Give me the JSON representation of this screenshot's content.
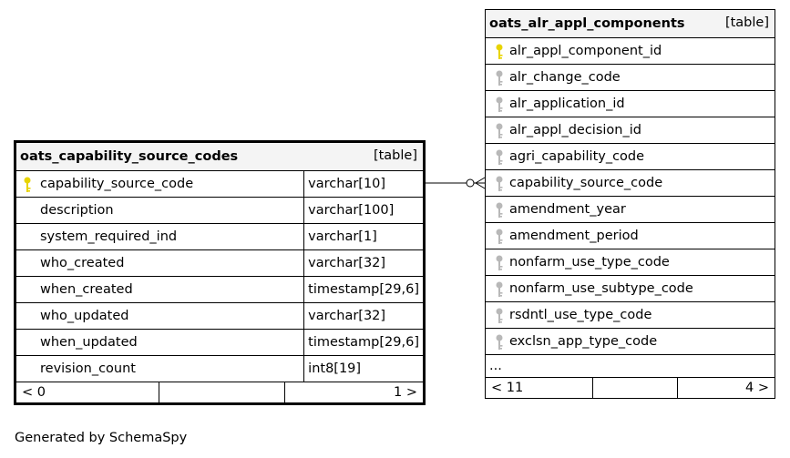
{
  "left_table": {
    "name": "oats_capability_source_codes",
    "kind": "[table]",
    "columns": [
      {
        "name": "capability_source_code",
        "type": "varchar[10]",
        "key": "primary"
      },
      {
        "name": "description",
        "type": "varchar[100]",
        "key": "none"
      },
      {
        "name": "system_required_ind",
        "type": "varchar[1]",
        "key": "none"
      },
      {
        "name": "who_created",
        "type": "varchar[32]",
        "key": "none"
      },
      {
        "name": "when_created",
        "type": "timestamp[29,6]",
        "key": "none"
      },
      {
        "name": "who_updated",
        "type": "varchar[32]",
        "key": "none"
      },
      {
        "name": "when_updated",
        "type": "timestamp[29,6]",
        "key": "none"
      },
      {
        "name": "revision_count",
        "type": "int8[19]",
        "key": "none"
      }
    ],
    "footer": {
      "left": "< 0",
      "right": "1 >"
    }
  },
  "right_table": {
    "name": "oats_alr_appl_components",
    "kind": "[table]",
    "columns": [
      {
        "name": "alr_appl_component_id",
        "key": "primary"
      },
      {
        "name": "alr_change_code",
        "key": "foreign"
      },
      {
        "name": "alr_application_id",
        "key": "foreign"
      },
      {
        "name": "alr_appl_decision_id",
        "key": "foreign"
      },
      {
        "name": "agri_capability_code",
        "key": "foreign"
      },
      {
        "name": "capability_source_code",
        "key": "foreign"
      },
      {
        "name": "amendment_year",
        "key": "foreign"
      },
      {
        "name": "amendment_period",
        "key": "foreign"
      },
      {
        "name": "nonfarm_use_type_code",
        "key": "foreign"
      },
      {
        "name": "nonfarm_use_subtype_code",
        "key": "foreign"
      },
      {
        "name": "rsdntl_use_type_code",
        "key": "foreign"
      },
      {
        "name": "exclsn_app_type_code",
        "key": "foreign"
      }
    ],
    "ellipsis": "...",
    "footer": {
      "left": "< 11",
      "right": "4 >"
    }
  },
  "caption": "Generated by SchemaSpy",
  "colors": {
    "primary_key": "#e8d400",
    "foreign_key": "#b8b8b8",
    "header_bg": "#f4f4f4"
  }
}
